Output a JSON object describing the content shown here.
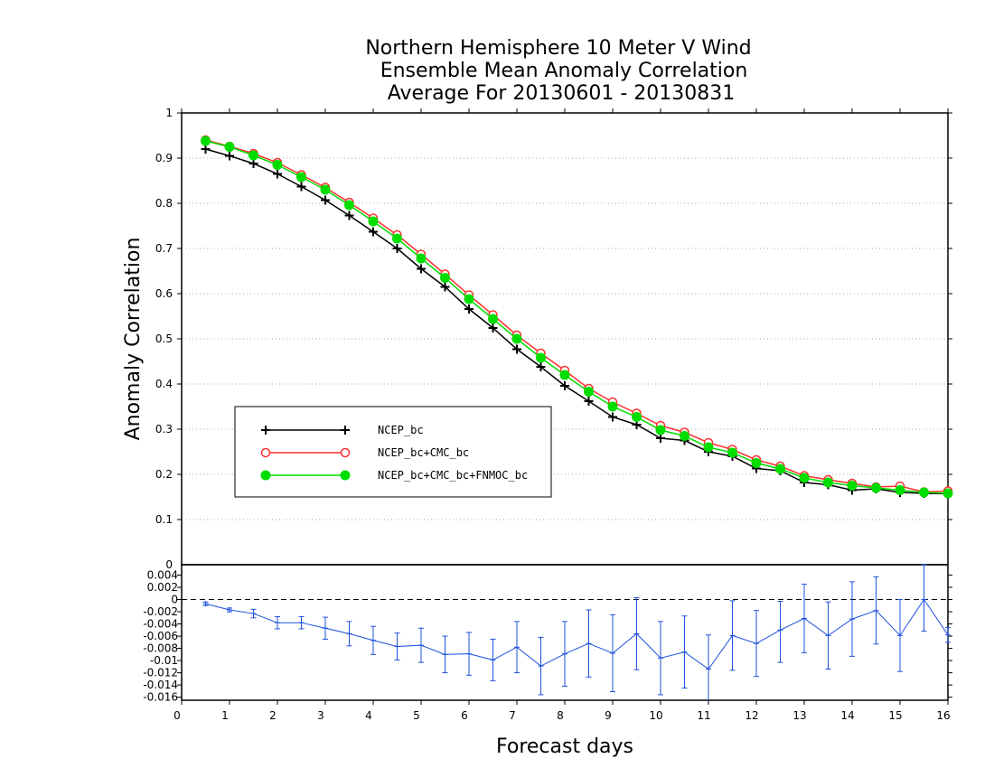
{
  "title_lines": [
    "Northern Hemisphere 10 Meter V Wind",
    "Ensemble Mean Anomaly Correlation",
    "Average For 20130601 - 20130831"
  ],
  "chart_data": [
    {
      "type": "line",
      "title": "Northern Hemisphere 10 Meter V Wind Ensemble Mean Anomaly Correlation Average For 20130601 - 20130831",
      "xlabel": "Forecast days",
      "ylabel": "Anomaly Correlation",
      "xlim": [
        0,
        16
      ],
      "ylim": [
        0,
        1
      ],
      "yticks": [
        0.1,
        0.2,
        0.3,
        0.4,
        0.5,
        0.6,
        0.7,
        0.8,
        0.9,
        1
      ],
      "grid": "horizontal dotted",
      "legend_position": "middle-left",
      "x": [
        0.5,
        1,
        1.5,
        2,
        2.5,
        3,
        3.5,
        4,
        4.5,
        5,
        5.5,
        6,
        6.5,
        7,
        7.5,
        8,
        8.5,
        9,
        9.5,
        10,
        10.5,
        11,
        11.5,
        12,
        12.5,
        13,
        13.5,
        14,
        14.5,
        15,
        15.5,
        16
      ],
      "series": [
        {
          "name": "NCEP_bc",
          "color": "#000000",
          "marker": "plus",
          "values": [
            0.92,
            0.905,
            0.888,
            0.865,
            0.837,
            0.807,
            0.773,
            0.737,
            0.7,
            0.655,
            0.615,
            0.566,
            0.524,
            0.477,
            0.438,
            0.396,
            0.362,
            0.327,
            0.31,
            0.28,
            0.275,
            0.25,
            0.24,
            0.213,
            0.208,
            0.182,
            0.177,
            0.165,
            0.168,
            0.16,
            0.158,
            0.157
          ]
        },
        {
          "name": "NCEP_bc+CMC_bc",
          "color": "#ff3030",
          "marker": "open-circle",
          "values": [
            0.94,
            0.926,
            0.91,
            0.89,
            0.863,
            0.835,
            0.802,
            0.767,
            0.73,
            0.687,
            0.643,
            0.597,
            0.553,
            0.508,
            0.468,
            0.43,
            0.39,
            0.36,
            0.335,
            0.308,
            0.293,
            0.27,
            0.255,
            0.232,
            0.218,
            0.197,
            0.188,
            0.18,
            0.172,
            0.174,
            0.161,
            0.163
          ]
        },
        {
          "name": "NCEP_bc+CMC_bc+FNMOC_bc",
          "color": "#00dd00",
          "marker": "filled-circle",
          "values": [
            0.938,
            0.925,
            0.906,
            0.885,
            0.858,
            0.83,
            0.796,
            0.76,
            0.722,
            0.678,
            0.635,
            0.588,
            0.544,
            0.5,
            0.458,
            0.42,
            0.383,
            0.35,
            0.327,
            0.298,
            0.285,
            0.26,
            0.248,
            0.225,
            0.212,
            0.192,
            0.182,
            0.175,
            0.17,
            0.165,
            0.16,
            0.158
          ]
        }
      ]
    },
    {
      "type": "line",
      "title": "",
      "xlabel": "Forecast days",
      "ylabel": "",
      "xlim": [
        0,
        16
      ],
      "xticks": [
        0,
        1,
        2,
        3,
        4,
        5,
        6,
        7,
        8,
        9,
        10,
        11,
        12,
        13,
        14,
        15,
        16
      ],
      "ylim": [
        -0.0165,
        0.0057
      ],
      "yticks": [
        0.004,
        0.002,
        0,
        -0.002,
        -0.004,
        -0.006,
        -0.008,
        -0.01,
        -0.012,
        -0.014,
        -0.016
      ],
      "ytick_labels": [
        "0.004",
        "0.002",
        "0",
        "-0.002",
        "-0.004",
        "-0.006",
        "-0.008",
        "-0.01",
        "-0.012",
        "-0.014",
        "-0.016"
      ],
      "top_label": "0",
      "zero_line": "dashed",
      "error_bars": true,
      "x": [
        0.5,
        1,
        1.5,
        2,
        2.5,
        3,
        3.5,
        4,
        4.5,
        5,
        5.5,
        6,
        6.5,
        7,
        7.5,
        8,
        8.5,
        9,
        9.5,
        10,
        10.5,
        11,
        11.5,
        12,
        12.5,
        13,
        13.5,
        14,
        14.5,
        15,
        15.5,
        16
      ],
      "series": [
        {
          "name": "",
          "color": "#1e50dc",
          "marker": "plus",
          "values": [
            -0.0007,
            -0.0017,
            -0.0023,
            -0.0038,
            -0.0038,
            -0.0047,
            -0.0056,
            -0.0067,
            -0.0077,
            -0.0075,
            -0.009,
            -0.0089,
            -0.0099,
            -0.0078,
            -0.0109,
            -0.0089,
            -0.0072,
            -0.0088,
            -0.0056,
            -0.0096,
            -0.0086,
            -0.0114,
            -0.0059,
            -0.0072,
            -0.005,
            -0.0031,
            -0.0059,
            -0.0032,
            -0.0018,
            -0.0059,
            0.0,
            -0.0058
          ],
          "error_low": [
            -0.001,
            -0.002,
            -0.003,
            -0.0048,
            -0.0048,
            -0.0065,
            -0.0076,
            -0.009,
            -0.0099,
            -0.0103,
            -0.012,
            -0.0124,
            -0.0133,
            -0.012,
            -0.0156,
            -0.0142,
            -0.0127,
            -0.0151,
            -0.0115,
            -0.0156,
            -0.0145,
            -0.017,
            -0.0116,
            -0.0126,
            -0.0103,
            -0.0087,
            -0.0114,
            -0.0093,
            -0.0073,
            -0.0118,
            -0.0052,
            -0.007
          ],
          "error_high": [
            -0.0004,
            -0.0014,
            -0.0016,
            -0.0028,
            -0.0028,
            -0.0029,
            -0.0036,
            -0.0044,
            -0.0055,
            -0.0047,
            -0.006,
            -0.0054,
            -0.0065,
            -0.0036,
            -0.0062,
            -0.0036,
            -0.0017,
            -0.0025,
            0.0003,
            -0.0036,
            -0.0027,
            -0.0058,
            -0.0002,
            -0.0018,
            -0.0003,
            0.0025,
            -0.0004,
            0.0029,
            0.0037,
            0.0,
            0.0057,
            -0.0046
          ]
        }
      ]
    }
  ],
  "colors": {
    "frame": "#000000",
    "grid": "#aaaaaa",
    "diff_series": "#1e50dc"
  }
}
